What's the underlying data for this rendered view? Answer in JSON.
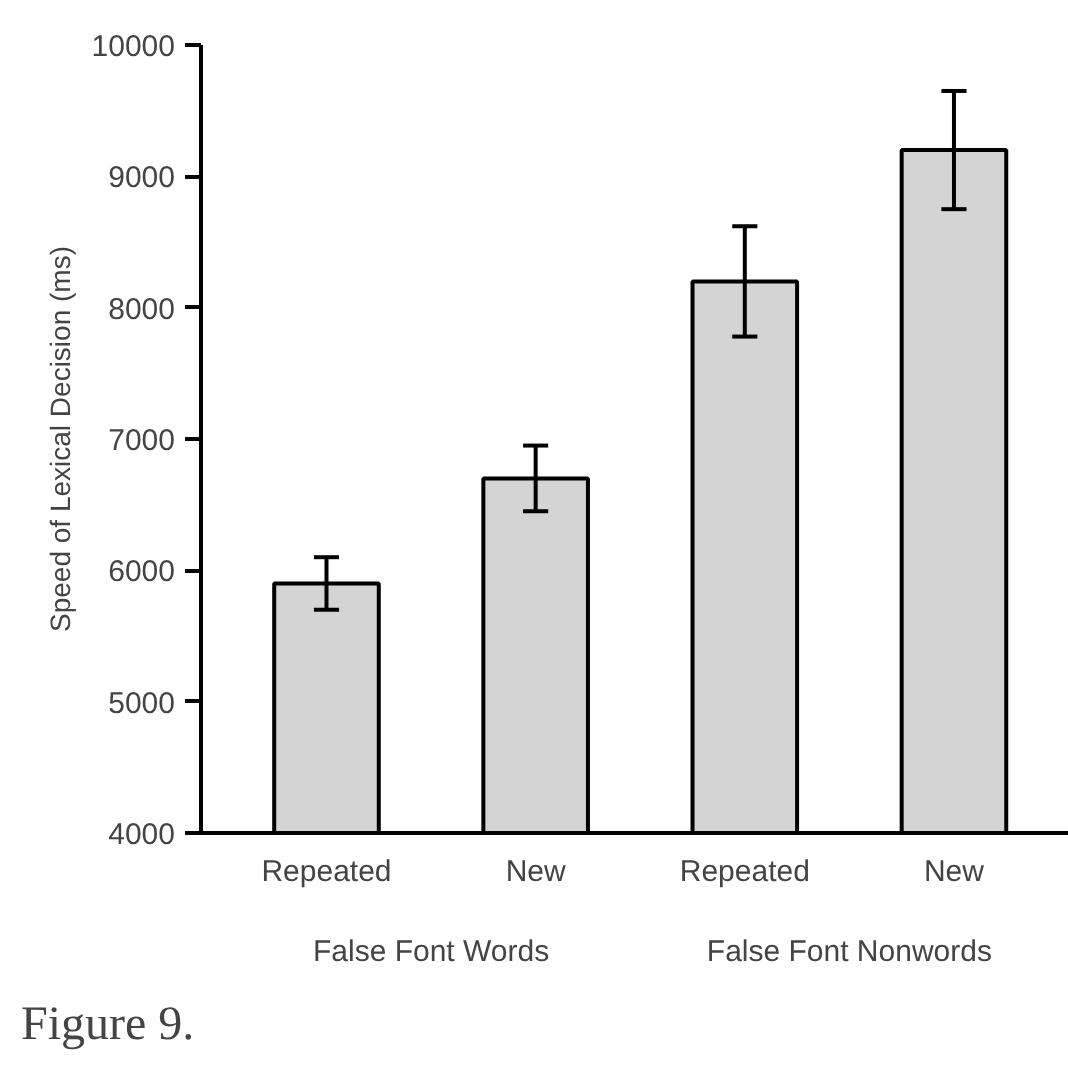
{
  "chart_data": {
    "type": "bar",
    "categories": [
      "Repeated",
      "New",
      "Repeated",
      "New"
    ],
    "values": [
      5900,
      6700,
      8200,
      9200
    ],
    "errors": [
      [
        5700,
        6100
      ],
      [
        6450,
        6950
      ],
      [
        7780,
        8620
      ],
      [
        8750,
        9650
      ]
    ],
    "color": "#d4d4d4",
    "ylabel": "Speed of Lexical Decision (ms)",
    "ylim": [
      4000,
      10000
    ],
    "yticks": [
      4000,
      5000,
      6000,
      7000,
      8000,
      9000,
      10000
    ],
    "annotations": [
      "False Font Words",
      "False Font Nonwords",
      "Figure 9."
    ]
  }
}
